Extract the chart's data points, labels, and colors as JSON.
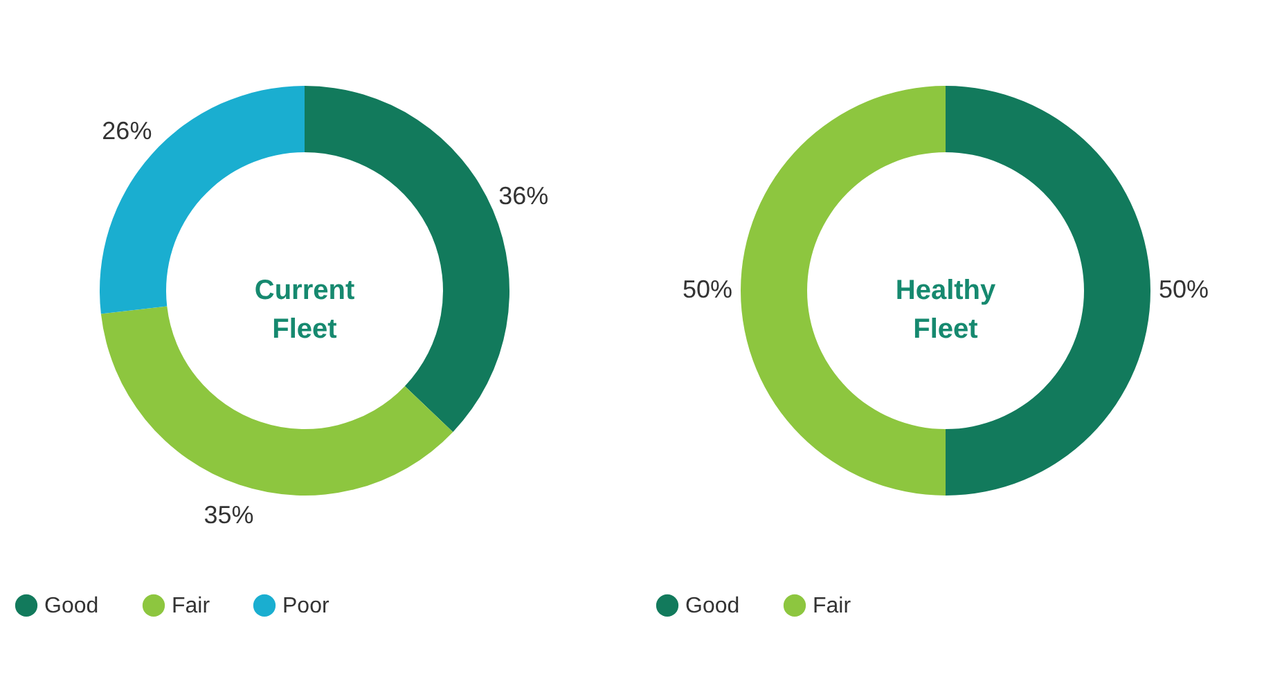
{
  "chart_data": [
    {
      "type": "donut",
      "title": "Current Fleet",
      "categories": [
        "Good",
        "Fair",
        "Poor"
      ],
      "values": [
        36,
        35,
        26
      ],
      "colors": [
        "#127a5c",
        "#8dc63f",
        "#1aaed0"
      ],
      "value_labels": [
        "36%",
        "35%",
        "26%"
      ],
      "legend": "bottom"
    },
    {
      "type": "donut",
      "title": "Healthy Fleet",
      "categories": [
        "Good",
        "Fair"
      ],
      "values": [
        50,
        50
      ],
      "colors": [
        "#127a5c",
        "#8dc63f"
      ],
      "value_labels": [
        "50%",
        "50%"
      ],
      "legend": "bottom"
    }
  ]
}
